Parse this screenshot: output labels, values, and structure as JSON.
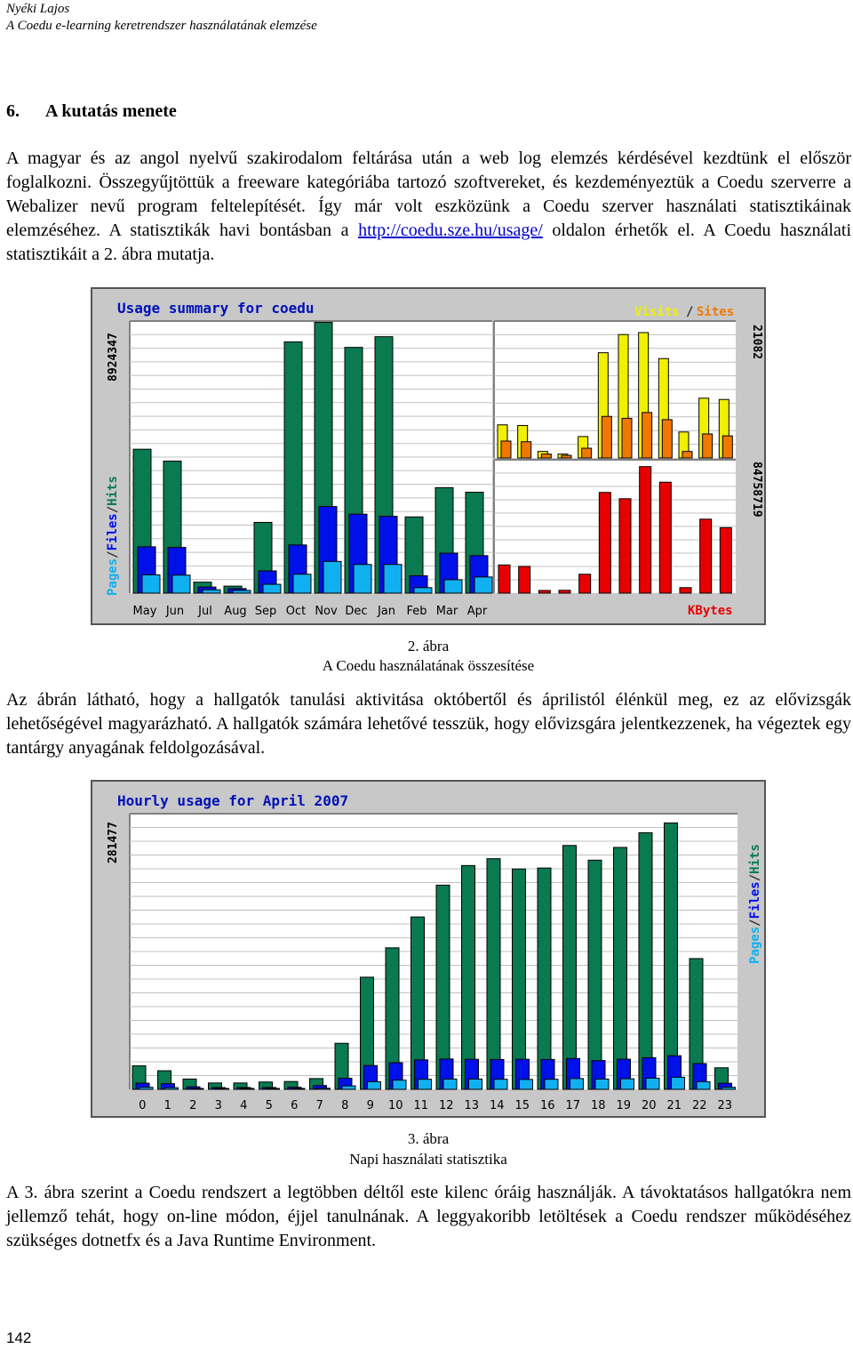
{
  "header": {
    "author": "Nyéki Lajos",
    "subtitle": "A Coedu e-learning keretrendszer használatának elemzése"
  },
  "section": {
    "number": "6.",
    "title": "A kutatás menete"
  },
  "paragraph1": {
    "text_before_link": "A magyar és az angol nyelvű szakirodalom feltárása után a web log elemzés kérdésével kezdtünk el először foglalkozni. Összegyűjtöttük a freeware kategóriába tartozó szoftvereket, és kezdeményeztük a Coedu szerverre a Webalizer nevű program feltelepítését. Így már volt eszközünk a Coedu szerver használati statisztikáinak elemzéséhez. A statisztikák havi bontásban a ",
    "link": "http://coedu.sze.hu/usage/",
    "text_after_link": " oldalon érhetők el. A Coedu használati statisztikáit a 2. ábra mutatja."
  },
  "figure2": {
    "number": "2. ábra",
    "caption": "A Coedu használatának összesítése"
  },
  "paragraph2": "Az ábrán látható, hogy a hallgatók tanulási aktivitása októbertől és áprilistól élénkül meg, ez az elővizsgák lehetőségével magyarázható. A hallgatók számára lehetővé tesszük, hogy elővizsgára jelentkezzenek, ha végeztek egy tantárgy anyagának feldolgozásával.",
  "figure3": {
    "number": "3. ábra",
    "caption": "Napi használati statisztika"
  },
  "paragraph3": "A 3. ábra szerint a Coedu rendszert a legtöbben déltől este kilenc óráig használják. A távoktatásos hallgatókra nem jellemző tehát, hogy on-line módon, éjjel tanulnának. A leggyakoribb letöltések a Coedu rendszer működéséhez szükséges dotnetfx és a Java Runtime Environment.",
  "page_number": "142",
  "colors": {
    "hits": "#0a7a50",
    "files": "#0010e8",
    "pages": "#10b0f0",
    "visits": "#f0f000",
    "sites": "#f07800",
    "kbytes": "#e80000",
    "title": "#0010b8",
    "background": "#c8c8c8"
  },
  "chart_data": [
    {
      "type": "bar",
      "title": "Usage summary for coedu",
      "categories": [
        "May",
        "Jun",
        "Jul",
        "Aug",
        "Sep",
        "Oct",
        "Nov",
        "Dec",
        "Jan",
        "Feb",
        "Mar",
        "Apr"
      ],
      "left_ylabel": "8924347",
      "left_legend": [
        "Pages",
        "Files",
        "Hits"
      ],
      "left_ylim": [
        0,
        8924347
      ],
      "series": [
        {
          "name": "Hits",
          "values": [
            4720000,
            4330000,
            360000,
            230000,
            2320000,
            8240000,
            8880000,
            8060000,
            8410000,
            2500000,
            3460000,
            3310000
          ]
        },
        {
          "name": "Files",
          "values": [
            1520000,
            1500000,
            200000,
            150000,
            730000,
            1580000,
            2840000,
            2590000,
            2520000,
            570000,
            1310000,
            1230000
          ]
        },
        {
          "name": "Pages",
          "values": [
            600000,
            590000,
            110000,
            90000,
            290000,
            620000,
            1040000,
            940000,
            940000,
            180000,
            440000,
            530000
          ]
        }
      ],
      "right_top_ylabel": "21082",
      "right_top_legend": [
        "Visits",
        "Sites"
      ],
      "right_top_ylim": [
        0,
        21082
      ],
      "right_top_series": [
        {
          "name": "Visits",
          "values": [
            5100,
            5000,
            1000,
            600,
            3300,
            16200,
            19000,
            19300,
            15300,
            4000,
            9200,
            9000
          ]
        },
        {
          "name": "Sites",
          "values": [
            2600,
            2500,
            600,
            400,
            1500,
            6400,
            6100,
            7000,
            5900,
            1000,
            3700,
            3400
          ]
        }
      ],
      "right_bottom_ylabel": "84758719",
      "right_bottom_legend": [
        "KBytes"
      ],
      "right_bottom_ylim": [
        0,
        84758719
      ],
      "right_bottom_series": [
        {
          "name": "KBytes",
          "values": [
            17900000,
            17000000,
            1700000,
            1800000,
            12000000,
            64000000,
            60000000,
            80400000,
            70500000,
            3500000,
            47000000,
            41600000
          ]
        }
      ]
    },
    {
      "type": "bar",
      "title": "Hourly usage for April 2007",
      "categories": [
        "0",
        "1",
        "2",
        "3",
        "4",
        "5",
        "6",
        "7",
        "8",
        "9",
        "10",
        "11",
        "12",
        "13",
        "14",
        "15",
        "16",
        "17",
        "18",
        "19",
        "20",
        "21",
        "22",
        "23"
      ],
      "ylabel": "281477",
      "legend": [
        "Pages",
        "Files",
        "Hits"
      ],
      "ylim": [
        0,
        281477
      ],
      "series": [
        {
          "name": "Hits",
          "values": [
            24000,
            19000,
            10500,
            6500,
            6500,
            7500,
            8000,
            11000,
            47000,
            114500,
            144500,
            176000,
            208500,
            228500,
            235500,
            225000,
            226000,
            249000,
            234000,
            247000,
            262000,
            272000,
            133500,
            22000
          ]
        },
        {
          "name": "Files",
          "values": [
            6300,
            5800,
            2600,
            1800,
            1900,
            1900,
            2100,
            3900,
            11300,
            24300,
            27200,
            30100,
            31000,
            30700,
            30500,
            30700,
            30500,
            31500,
            29400,
            30800,
            32300,
            34300,
            26300,
            6200
          ]
        },
        {
          "name": "Pages",
          "values": [
            2100,
            1700,
            700,
            500,
            500,
            500,
            600,
            1100,
            3500,
            7800,
            9400,
            10300,
            10500,
            10500,
            10300,
            10100,
            10300,
            11000,
            10500,
            10800,
            11400,
            12300,
            7800,
            2100
          ]
        }
      ]
    }
  ]
}
